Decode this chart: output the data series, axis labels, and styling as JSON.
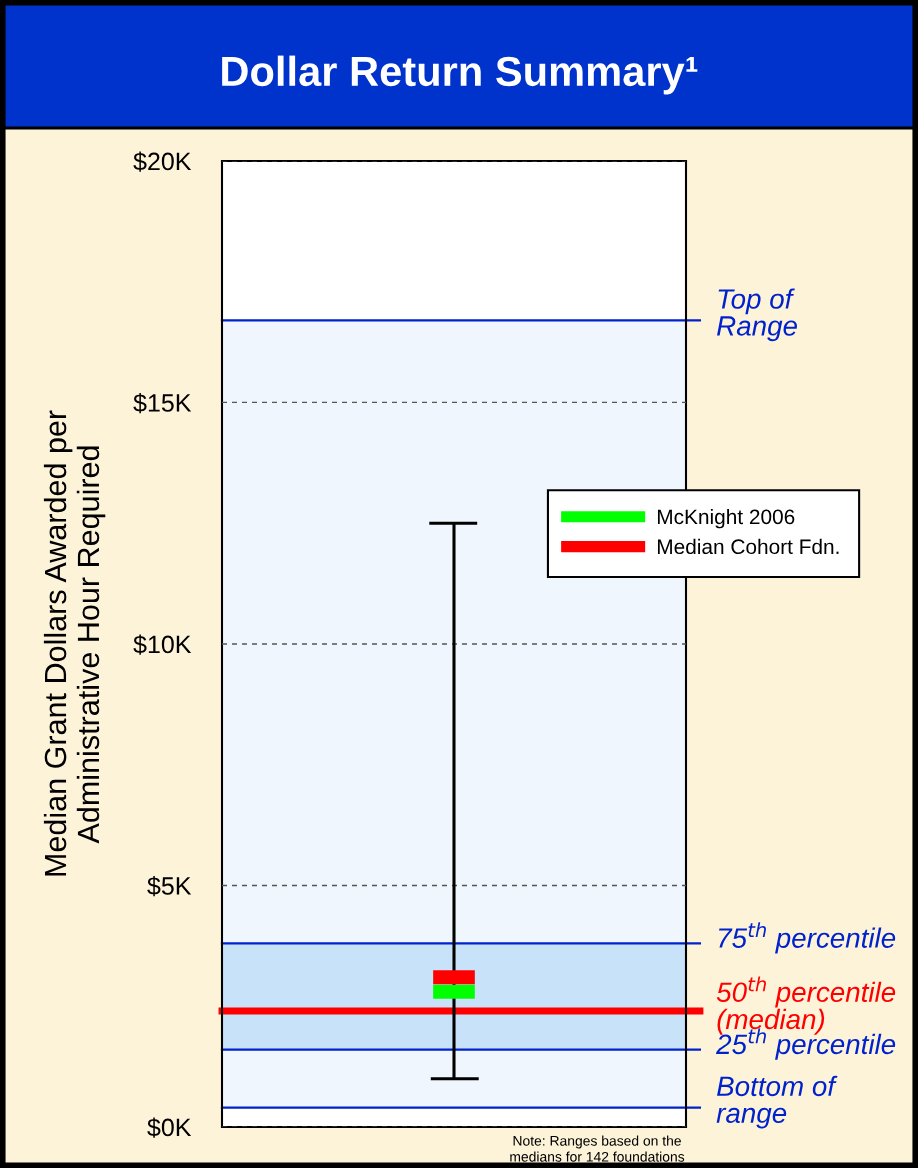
{
  "chart_data": {
    "type": "scatter",
    "title": "Dollar Return Summary¹",
    "ylabel": "Median Grant Dollars Awarded per\nAdministrative Hour Required",
    "categories": [
      null
    ],
    "series": [
      {
        "name": "McKnight 2006",
        "color": "#00ff00",
        "values": [
          2.8
        ]
      },
      {
        "name": "Median Cohort Fdn.",
        "color": "#ff0000",
        "values": [
          3.1
        ],
        "errors": [
          [
            1.0,
            12.5
          ]
        ]
      }
    ],
    "ylim": [
      0,
      20
    ],
    "yticks": [
      {
        "value": 0,
        "label": "$0K"
      },
      {
        "value": 5,
        "label": "$5K"
      },
      {
        "value": 10,
        "label": "$10K"
      },
      {
        "value": 15,
        "label": "$15K"
      },
      {
        "value": 20,
        "label": "$20K"
      }
    ],
    "grid": "y",
    "legend": "top right",
    "marker": "square",
    "bands": [
      {
        "axis": "y",
        "from": 0.4,
        "to": 16.7,
        "color": "#f0f6fd"
      },
      {
        "axis": "y",
        "from": 1.6,
        "to": 3.8,
        "color": "#c8e2fa"
      }
    ],
    "ref_lines": [
      {
        "axis": "y",
        "value": 16.7,
        "label": "Top of\nRange",
        "color": "#0022cc"
      },
      {
        "axis": "y",
        "value": 3.8,
        "label": "75$^{th}$ percentile",
        "color": "#0022cc"
      },
      {
        "axis": "y",
        "value": 2.4,
        "label": "50$^{th}$ percentile\n(median)",
        "color": "#ff0000"
      },
      {
        "axis": "y",
        "value": 1.6,
        "label": "25$^{th}$ percentile",
        "color": "#0022cc"
      },
      {
        "axis": "y",
        "value": 0.4,
        "label": "Bottom of\nrange",
        "color": "#0022cc"
      }
    ],
    "annotations": [
      "Note: Ranges based on the\nmedians for 142 foundations"
    ]
  }
}
